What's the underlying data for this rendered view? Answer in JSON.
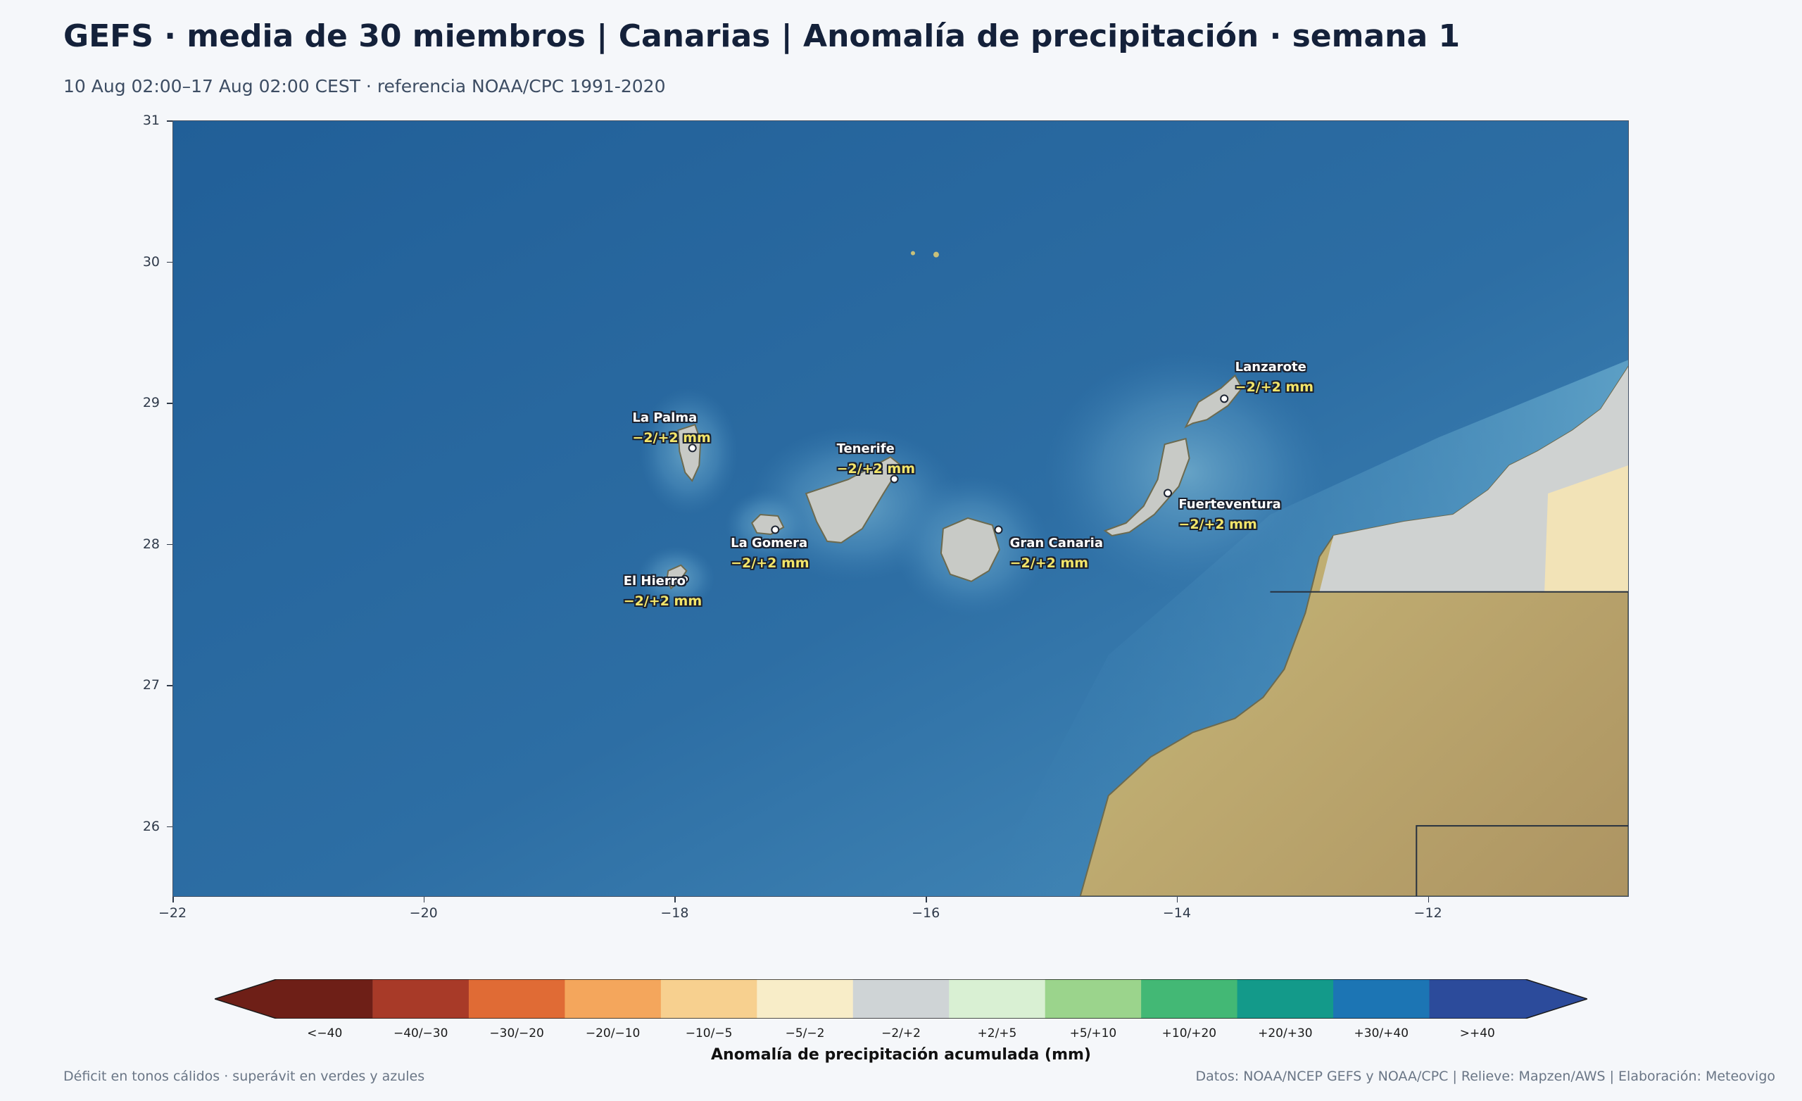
{
  "title": "GEFS · media de 30 miembros | Canarias | Anomalía de precipitación · semana 1",
  "subtitle": "10 Aug 02:00–17 Aug 02:00 CEST · referencia NOAA/CPC 1991-2020",
  "map": {
    "lon_range": [
      -22,
      -10.4
    ],
    "lat_range": [
      25.5,
      31
    ],
    "lon_ticks": [
      "−22",
      "−20",
      "−18",
      "−16",
      "−14",
      "−12"
    ],
    "lat_ticks": [
      "31",
      "30",
      "29",
      "28",
      "27",
      "26"
    ],
    "ocean_color": "#2a6aa0",
    "land_color": "#c9b77a"
  },
  "stations": [
    {
      "name": "La Palma",
      "value": "−2/+2 mm",
      "lon": -17.86,
      "lat": 28.68
    },
    {
      "name": "Tenerife",
      "value": "−2/+2 mm",
      "lon": -16.25,
      "lat": 28.46
    },
    {
      "name": "La Gomera",
      "value": "−2/+2 mm",
      "lon": -17.2,
      "lat": 28.1
    },
    {
      "name": "El Hierro",
      "value": "−2/+2 mm",
      "lon": -17.92,
      "lat": 27.75
    },
    {
      "name": "Gran Canaria",
      "value": "−2/+2 mm",
      "lon": -15.42,
      "lat": 28.1
    },
    {
      "name": "Fuerteventura",
      "value": "−2/+2 mm",
      "lon": -14.07,
      "lat": 28.36
    },
    {
      "name": "Lanzarote",
      "value": "−2/+2 mm",
      "lon": -13.62,
      "lat": 29.03
    }
  ],
  "colorbar": {
    "label": "Anomalía de precipitación acumulada (mm)",
    "classes": [
      "<−40",
      "−40/−30",
      "−30/−20",
      "−20/−10",
      "−10/−5",
      "−5/−2",
      "−2/+2",
      "+2/+5",
      "+5/+10",
      "+10/+20",
      "+20/+30",
      "+30/+40",
      ">+40"
    ],
    "colors": [
      "#6e1f17",
      "#a83a28",
      "#e06b35",
      "#f4a65c",
      "#f7d08f",
      "#f8edc8",
      "#cfd4d6",
      "#d9f0d3",
      "#9bd48c",
      "#43b875",
      "#139a8a",
      "#1c75b4",
      "#2c4b9b"
    ]
  },
  "footer_left": "Déficit en tonos cálidos · superávit en verdes y azules",
  "footer_right": "Datos: NOAA/NCEP GEFS y NOAA/CPC | Relieve: Mapzen/AWS | Elaboración: Meteovigo"
}
